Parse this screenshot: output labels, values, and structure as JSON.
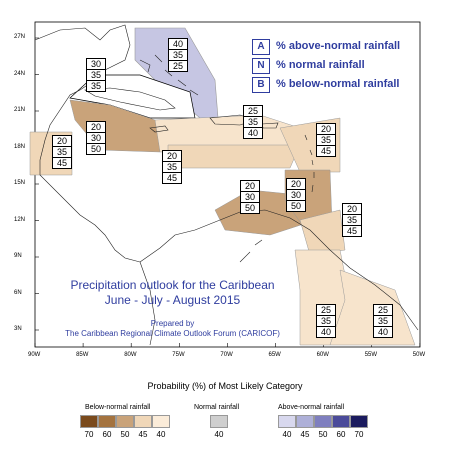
{
  "map": {
    "lat_labels": [
      "27N",
      "24N",
      "21N",
      "18N",
      "15N",
      "12N",
      "9N",
      "6N",
      "3N"
    ],
    "lon_labels": [
      "90W",
      "85W",
      "80W",
      "75W",
      "70W",
      "65W",
      "60W",
      "55W",
      "50W"
    ]
  },
  "category_key": [
    {
      "code": "A",
      "text": "% above-normal rainfall"
    },
    {
      "code": "N",
      "text": "% normal rainfall"
    },
    {
      "code": "B",
      "text": "% below-normal rainfall"
    }
  ],
  "outlook": {
    "title_line1": "Precipitation outlook for the Caribbean",
    "title_line2": "June - July - August 2015",
    "prepared_by": "Prepared by",
    "organization": "The Caribbean Regional Climate Outlook Forum (CARICOF)"
  },
  "regions": [
    {
      "name": "bahamas-north",
      "above": "40",
      "normal": "35",
      "below": "25",
      "fill": "#c6c6e3"
    },
    {
      "name": "cuba",
      "above": "30",
      "normal": "35",
      "below": "35",
      "fill": "#ffffff"
    },
    {
      "name": "jamaica-cayman",
      "above": "20",
      "normal": "30",
      "below": "50",
      "fill": "#c9a37a"
    },
    {
      "name": "central-america-north",
      "above": "20",
      "normal": "35",
      "below": "45",
      "fill": "#f0d7b8"
    },
    {
      "name": "greater-antilles-east",
      "above": "25",
      "normal": "35",
      "below": "40",
      "fill": "#f7e4cc"
    },
    {
      "name": "caribbean-sea-central",
      "above": "20",
      "normal": "35",
      "below": "45",
      "fill": "#f0d7b8"
    },
    {
      "name": "lesser-antilles-north",
      "above": "20",
      "normal": "35",
      "below": "45",
      "fill": "#f0d7b8"
    },
    {
      "name": "abc-islands",
      "above": "20",
      "normal": "30",
      "below": "50",
      "fill": "#c9a37a"
    },
    {
      "name": "lesser-antilles-south",
      "above": "20",
      "normal": "30",
      "below": "50",
      "fill": "#c9a37a"
    },
    {
      "name": "trinidad-tobago",
      "above": "20",
      "normal": "35",
      "below": "45",
      "fill": "#f0d7b8"
    },
    {
      "name": "guyana",
      "above": "25",
      "normal": "35",
      "below": "40",
      "fill": "#f7e4cc"
    },
    {
      "name": "suriname-french-guiana",
      "above": "25",
      "normal": "35",
      "below": "40",
      "fill": "#f7e4cc"
    }
  ],
  "legend": {
    "title": "Probability (%) of Most Likely Category",
    "below": {
      "label": "Below-normal rainfall",
      "values": [
        "70",
        "60",
        "50",
        "45",
        "40"
      ],
      "colors": [
        "#7a4a1c",
        "#a4733f",
        "#c9a37a",
        "#f0d7b8",
        "#fbecd9"
      ]
    },
    "normal": {
      "label": "Normal rainfall",
      "values": [
        "40"
      ],
      "colors": [
        "#cfcfcf"
      ]
    },
    "above": {
      "label": "Above-normal rainfall",
      "values": [
        "40",
        "45",
        "50",
        "60",
        "70"
      ],
      "colors": [
        "#d8d8ee",
        "#aeb0d8",
        "#7f7fbf",
        "#4b4b9a",
        "#1b1b5e"
      ]
    }
  }
}
